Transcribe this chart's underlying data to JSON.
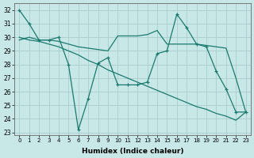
{
  "line1_x": [
    0,
    1,
    2,
    3,
    4,
    5,
    6,
    7,
    8,
    9,
    10,
    11,
    12,
    13,
    14,
    15,
    16,
    17,
    18,
    19,
    20,
    21,
    22,
    23
  ],
  "line1_y": [
    32,
    31,
    29.8,
    29.8,
    30,
    28,
    23.2,
    25.5,
    28.1,
    28.5,
    26.5,
    26.5,
    26.5,
    26.7,
    28.8,
    29.0,
    31.7,
    30.7,
    29.5,
    29.3,
    27.5,
    26.2,
    24.5,
    24.5
  ],
  "line2_x": [
    0,
    1,
    2,
    3,
    4,
    5,
    6,
    7,
    8,
    9,
    10,
    11,
    12,
    13,
    14,
    15,
    16,
    17,
    18,
    19,
    20,
    21,
    22,
    23
  ],
  "line2_y": [
    29.8,
    30,
    29.8,
    29.8,
    29.7,
    29.5,
    29.3,
    29.2,
    29.1,
    29.0,
    30.1,
    30.1,
    30.1,
    30.2,
    30.5,
    29.5,
    29.5,
    29.5,
    29.5,
    29.4,
    29.3,
    29.2,
    27.0,
    24.5
  ],
  "line3_x": [
    0,
    1,
    2,
    3,
    4,
    5,
    6,
    7,
    8,
    9,
    10,
    11,
    12,
    13,
    14,
    15,
    16,
    17,
    18,
    19,
    20,
    21,
    22,
    23
  ],
  "line3_y": [
    30,
    29.8,
    29.7,
    29.5,
    29.3,
    29.0,
    28.7,
    28.3,
    28.0,
    27.6,
    27.3,
    27.0,
    26.7,
    26.4,
    26.1,
    25.8,
    25.5,
    25.2,
    24.9,
    24.7,
    24.4,
    24.2,
    23.9,
    24.5
  ],
  "background_color": "#c8e8e8",
  "grid_color": "#aacccc",
  "line_color": "#1a7a6e",
  "xlim": [
    -0.5,
    23.5
  ],
  "ylim": [
    22.8,
    32.5
  ],
  "yticks": [
    23,
    24,
    25,
    26,
    27,
    28,
    29,
    30,
    31,
    32
  ],
  "xticks": [
    0,
    1,
    2,
    3,
    4,
    5,
    6,
    7,
    8,
    9,
    10,
    11,
    12,
    13,
    14,
    15,
    16,
    17,
    18,
    19,
    20,
    21,
    22,
    23
  ],
  "xlabel": "Humidex (Indice chaleur)"
}
